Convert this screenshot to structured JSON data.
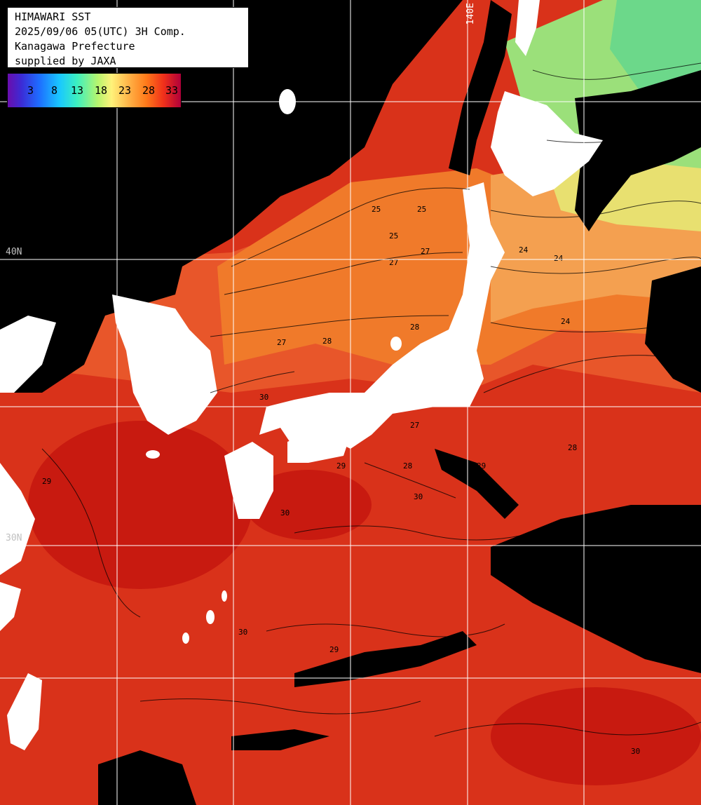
{
  "title": {
    "line1": "HIMAWARI SST",
    "line2": "2025/09/06 05(UTC) 3H Comp.",
    "line3": "Kanagawa Prefecture",
    "line4": "supplied by JAXA"
  },
  "colorbar": {
    "ticks": [
      "3",
      "8",
      "13",
      "18",
      "23",
      "28",
      "33"
    ],
    "colors": [
      "#6a0dad",
      "#1e6cff",
      "#19c8ff",
      "#b6f56e",
      "#fff27a",
      "#ff7a1a",
      "#b0003a"
    ]
  },
  "grid_labels": {
    "lon": "140E",
    "lat1": "40N",
    "lat2": "30N"
  },
  "contour_labels": [
    "25",
    "25",
    "25",
    "27",
    "27",
    "27",
    "28",
    "28",
    "28",
    "29",
    "29",
    "29",
    "30",
    "30",
    "30",
    "30",
    "24",
    "24",
    "24",
    "27",
    "28",
    "29",
    "30"
  ],
  "colors": {
    "land": "#ffffff",
    "cloud": "#000000",
    "warm_sea": "#d9321a",
    "hot_sea": "#c81a10",
    "mid_sea": "#f07a2a",
    "cool_sea": "#f4a050",
    "cold_sea": "#9be07a",
    "grid": "#ffffff"
  }
}
